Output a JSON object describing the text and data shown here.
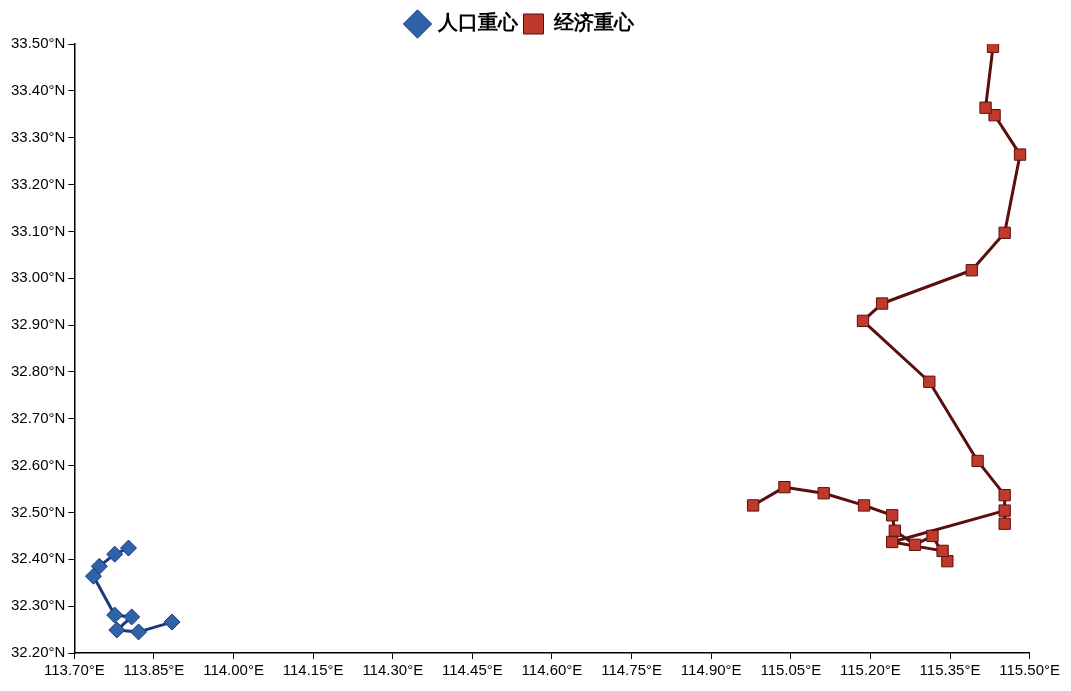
{
  "chart_data": {
    "type": "line",
    "legend": "top",
    "grid": false,
    "xlim": [
      113.7,
      115.5
    ],
    "xticks": [
      {
        "value": 113.7,
        "label": "113.70°E"
      },
      {
        "value": 113.85,
        "label": "113.85°E"
      },
      {
        "value": 114,
        "label": "114.00°E"
      },
      {
        "value": 114.15,
        "label": "114.15°E"
      },
      {
        "value": 114.3,
        "label": "114.30°E"
      },
      {
        "value": 114.45,
        "label": "114.45°E"
      },
      {
        "value": 114.6,
        "label": "114.60°E"
      },
      {
        "value": 114.75,
        "label": "114.75°E"
      },
      {
        "value": 114.9,
        "label": "114.90°E"
      },
      {
        "value": 115.05,
        "label": "115.05°E"
      },
      {
        "value": 115.2,
        "label": "115.20°E"
      },
      {
        "value": 115.35,
        "label": "115.35°E"
      },
      {
        "value": 115.5,
        "label": "115.50°E"
      }
    ],
    "ylim": [
      32.2,
      33.5
    ],
    "yticks": [
      {
        "value": 32.2,
        "label": "32.20°N"
      },
      {
        "value": 32.3,
        "label": "32.30°N"
      },
      {
        "value": 32.4,
        "label": "32.40°N"
      },
      {
        "value": 32.5,
        "label": "32.50°N"
      },
      {
        "value": 32.6,
        "label": "32.60°N"
      },
      {
        "value": 32.7,
        "label": "32.70°N"
      },
      {
        "value": 32.8,
        "label": "32.80°N"
      },
      {
        "value": 32.9,
        "label": "32.90°N"
      },
      {
        "value": 33,
        "label": "33.00°N"
      },
      {
        "value": 33.1,
        "label": "33.10°N"
      },
      {
        "value": 33.2,
        "label": "33.20°N"
      },
      {
        "value": 33.3,
        "label": "33.30°N"
      },
      {
        "value": 33.4,
        "label": "33.40°N"
      },
      {
        "value": 33.5,
        "label": "33.50°N"
      }
    ],
    "series": [
      {
        "name": "人口重心",
        "color": "#2e63a8",
        "marker": "diamond",
        "x": [
          113.802,
          113.776,
          113.747,
          113.736,
          113.776,
          113.808,
          113.78,
          113.821,
          113.884
        ],
        "values": [
          32.424,
          32.411,
          32.385,
          32.364,
          32.281,
          32.277,
          32.249,
          32.245,
          32.266
        ]
      },
      {
        "name": "经济重心",
        "color": "#c0392b",
        "marker": "square",
        "x": [
          114.979,
          115.038,
          115.112,
          115.188,
          115.241,
          115.246,
          115.284,
          115.317,
          115.345,
          115.336,
          115.241,
          115.453,
          115.453,
          115.453,
          115.402,
          115.311,
          115.186,
          115.222,
          115.391,
          115.453,
          115.482,
          115.434,
          115.417,
          115.431
        ],
        "values": [
          32.515,
          32.554,
          32.541,
          32.515,
          32.494,
          32.461,
          32.431,
          32.45,
          32.396,
          32.418,
          32.437,
          32.504,
          32.476,
          32.537,
          32.61,
          32.779,
          32.909,
          32.946,
          33.017,
          33.097,
          33.264,
          33.348,
          33.364,
          33.494
        ]
      }
    ]
  }
}
